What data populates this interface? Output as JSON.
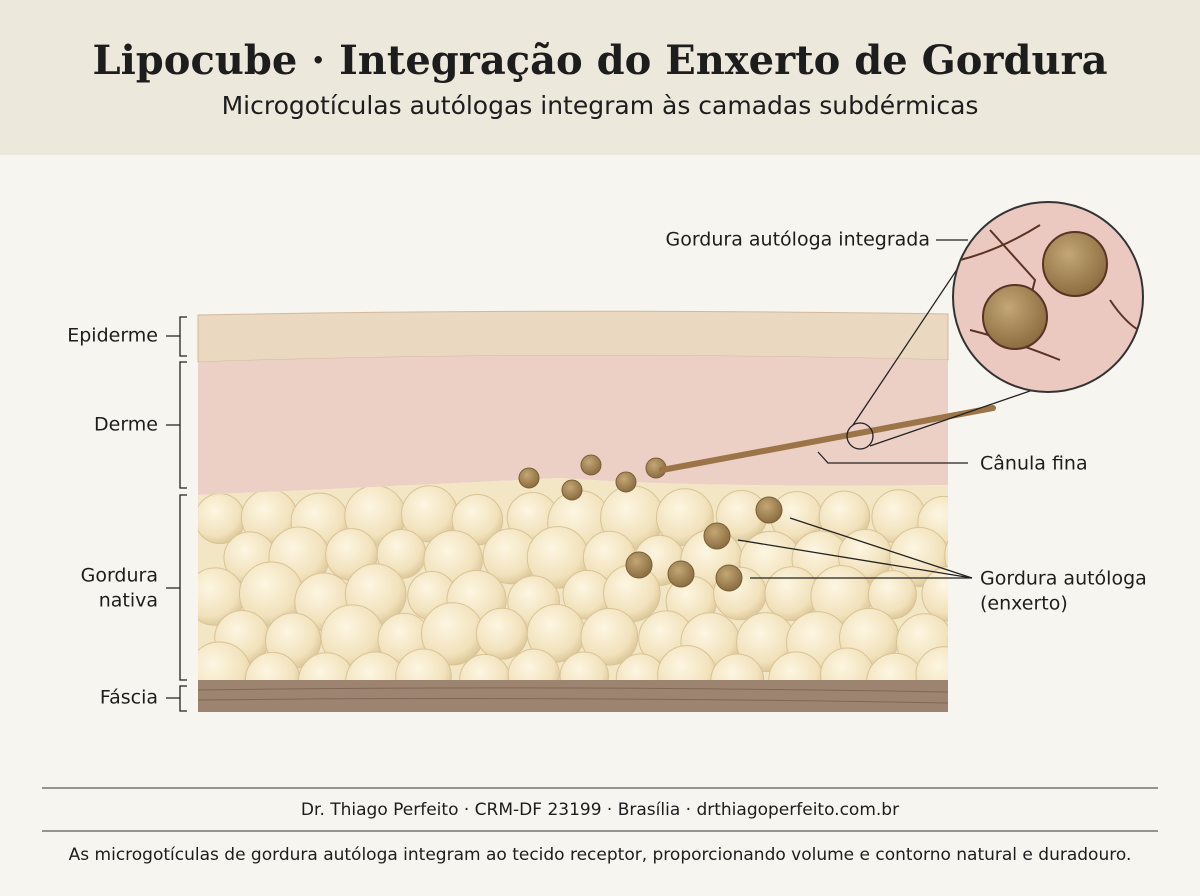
{
  "header": {
    "title": "Lipocube · Integração do Enxerto de Gordura",
    "subtitle": "Microgotículas autólogas integram às camadas subdérmicas"
  },
  "layers": [
    {
      "lines": [
        "Epiderme"
      ]
    },
    {
      "lines": [
        "Derme"
      ]
    },
    {
      "lines": [
        "Gordura",
        "nativa"
      ]
    },
    {
      "lines": [
        "Fáscia"
      ]
    }
  ],
  "annotations": [
    {
      "lines": [
        "Gordura autóloga integrada"
      ]
    },
    {
      "lines": [
        "Cânula fina"
      ]
    },
    {
      "lines": [
        "Gordura autóloga",
        "(enxerto)"
      ]
    }
  ],
  "footer": {
    "credit": "Dr. Thiago Perfeito · CRM-DF 23199 · Brasília · drthiagoperfeito.com.br",
    "caption": "As microgotículas de gordura autóloga integram ao tecido receptor, proporcionando volume e contorno natural e duradouro."
  }
}
